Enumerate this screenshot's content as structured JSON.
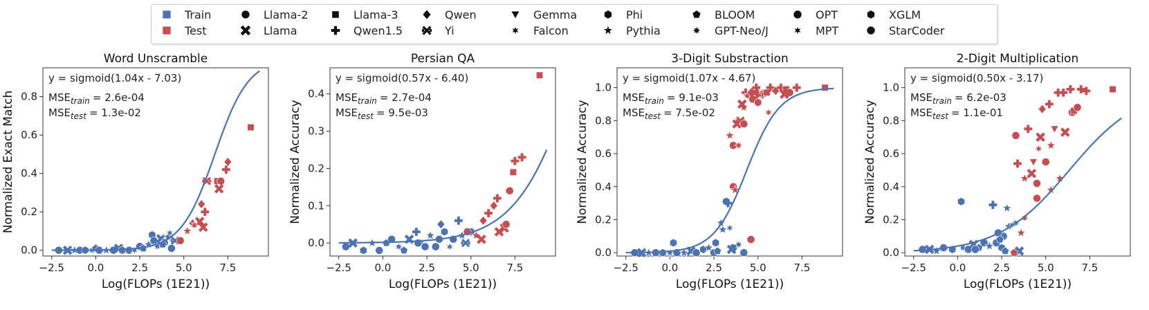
{
  "colors": {
    "train": "#4C72B0",
    "test": "#C44E52",
    "fit": "#4C72B0"
  },
  "legend": {
    "split": [
      {
        "label": "Train",
        "color": "#4C72B0",
        "icon": "square-marker"
      },
      {
        "label": "Test",
        "color": "#C44E52",
        "icon": "square-marker"
      }
    ],
    "models": [
      {
        "label": "Llama-2",
        "marker": "circle"
      },
      {
        "label": "Llama",
        "marker": "x"
      },
      {
        "label": "Llama-3",
        "marker": "square"
      },
      {
        "label": "Qwen1.5",
        "marker": "plus"
      },
      {
        "label": "Qwen",
        "marker": "diamond"
      },
      {
        "label": "Yi",
        "marker": "tri-x"
      },
      {
        "label": "Gemma",
        "marker": "triangle-down"
      },
      {
        "label": "Falcon",
        "marker": "star6"
      },
      {
        "label": "Phi",
        "marker": "hexagon"
      },
      {
        "label": "Pythia",
        "marker": "star"
      },
      {
        "label": "BLOOM",
        "marker": "pentagon"
      },
      {
        "label": "GPT-Neo/J",
        "marker": "star8"
      },
      {
        "label": "OPT",
        "marker": "circle"
      },
      {
        "label": "MPT",
        "marker": "star6"
      },
      {
        "label": "XGLM",
        "marker": "hexagon"
      },
      {
        "label": "StarCoder",
        "marker": "circle"
      }
    ]
  },
  "chart_data": [
    {
      "type": "scatter",
      "title": "Word Unscramble",
      "xlabel": "Log(FLOPs (1E21))",
      "ylabel": "Normalized Exact Match",
      "xlim": [
        -3,
        9.8
      ],
      "ylim": [
        -0.03,
        0.95
      ],
      "xticks": [
        -2.5,
        0.0,
        2.5,
        5.0,
        7.5
      ],
      "xtick_labels": [
        "−2.5",
        "0.0",
        "2.5",
        "5.0",
        "7.5"
      ],
      "yticks": [
        0.0,
        0.2,
        0.4,
        0.6,
        0.8
      ],
      "ytick_labels": [
        "0.0",
        "0.2",
        "0.4",
        "0.6",
        "0.8"
      ],
      "fit": {
        "a": 1.04,
        "b": -7.03,
        "x_range": [
          -2.5,
          9.3
        ]
      },
      "equation": "y = sigmoid(1.04x - 7.03)",
      "mse_train_value": "= 2.6e-04",
      "mse_test_value": "= 1.3e-02",
      "train": [
        [
          -2.1,
          0.0,
          "circle"
        ],
        [
          -1.6,
          0.0,
          "x"
        ],
        [
          -1.2,
          0.0,
          "star"
        ],
        [
          -0.9,
          0.0,
          "circle"
        ],
        [
          -0.6,
          0.0,
          "hexagon"
        ],
        [
          -0.2,
          0.0,
          "star8"
        ],
        [
          0.0,
          0.01,
          "pentagon"
        ],
        [
          0.2,
          0.0,
          "circle"
        ],
        [
          0.6,
          0.0,
          "star"
        ],
        [
          1.0,
          0.0,
          "circle"
        ],
        [
          1.3,
          0.01,
          "x"
        ],
        [
          1.5,
          0.0,
          "hexagon"
        ],
        [
          1.9,
          0.0,
          "circle"
        ],
        [
          2.2,
          0.0,
          "star6"
        ],
        [
          2.5,
          0.02,
          "circle"
        ],
        [
          2.7,
          0.01,
          "pentagon"
        ],
        [
          3.0,
          0.03,
          "star"
        ],
        [
          3.2,
          0.08,
          "hexagon"
        ],
        [
          3.3,
          0.05,
          "circle"
        ],
        [
          3.5,
          0.02,
          "star8"
        ],
        [
          3.7,
          0.06,
          "x"
        ],
        [
          3.9,
          0.04,
          "circle"
        ],
        [
          4.1,
          0.07,
          "star"
        ],
        [
          4.3,
          0.01,
          "circle"
        ],
        [
          4.5,
          0.05,
          "tri-x"
        ],
        [
          4.2,
          0.09,
          "star6"
        ],
        [
          3.8,
          0.03,
          "pentagon"
        ]
      ],
      "test": [
        [
          4.8,
          0.05,
          "circle"
        ],
        [
          5.2,
          0.1,
          "star"
        ],
        [
          5.5,
          0.14,
          "diamond"
        ],
        [
          5.9,
          0.15,
          "x"
        ],
        [
          6.0,
          0.24,
          "diamond"
        ],
        [
          6.2,
          0.2,
          "plus"
        ],
        [
          6.1,
          0.12,
          "x"
        ],
        [
          6.3,
          0.36,
          "tri-x"
        ],
        [
          6.9,
          0.36,
          "square"
        ],
        [
          7.1,
          0.36,
          "circle"
        ],
        [
          7.0,
          0.32,
          "x"
        ],
        [
          7.4,
          0.42,
          "plus"
        ],
        [
          7.5,
          0.46,
          "diamond"
        ],
        [
          8.8,
          0.64,
          "square"
        ],
        [
          5.6,
          0.13,
          "star8"
        ]
      ]
    },
    {
      "type": "scatter",
      "title": "Persian QA",
      "xlabel": "Log(FLOPs (1E21))",
      "ylabel": "Normalized Accuracy",
      "xlim": [
        -3,
        9.8
      ],
      "ylim": [
        -0.035,
        0.47
      ],
      "xticks": [
        -2.5,
        0.0,
        2.5,
        5.0,
        7.5
      ],
      "xtick_labels": [
        "−2.5",
        "0.0",
        "2.5",
        "5.0",
        "7.5"
      ],
      "yticks": [
        0.0,
        0.1,
        0.2,
        0.3,
        0.4
      ],
      "ytick_labels": [
        "0.0",
        "0.1",
        "0.2",
        "0.3",
        "0.4"
      ],
      "fit": {
        "a": 0.57,
        "b": -6.4,
        "x_range": [
          -2.5,
          9.3
        ]
      },
      "equation": "y = sigmoid(0.57x - 6.40)",
      "mse_train_value": "= 2.7e-04",
      "mse_test_value": "= 9.5e-03",
      "train": [
        [
          -2.1,
          -0.01,
          "circle"
        ],
        [
          -1.7,
          0.0,
          "x"
        ],
        [
          -1.1,
          -0.02,
          "hexagon"
        ],
        [
          -0.6,
          0.0,
          "star"
        ],
        [
          -0.2,
          -0.02,
          "circle"
        ],
        [
          0.2,
          0.0,
          "pentagon"
        ],
        [
          0.5,
          0.01,
          "circle"
        ],
        [
          0.9,
          -0.01,
          "star8"
        ],
        [
          1.2,
          -0.02,
          "pentagon"
        ],
        [
          1.5,
          0.01,
          "x"
        ],
        [
          1.9,
          0.03,
          "plus"
        ],
        [
          2.1,
          0.0,
          "hexagon"
        ],
        [
          2.4,
          -0.01,
          "circle"
        ],
        [
          2.7,
          0.02,
          "star"
        ],
        [
          3.0,
          -0.01,
          "circle"
        ],
        [
          3.2,
          0.01,
          "circle"
        ],
        [
          3.5,
          0.03,
          "hexagon"
        ],
        [
          3.8,
          -0.01,
          "star6"
        ],
        [
          4.0,
          0.01,
          "circle"
        ],
        [
          4.3,
          0.06,
          "plus"
        ],
        [
          4.5,
          0.02,
          "star"
        ],
        [
          4.7,
          0.0,
          "tri-x"
        ],
        [
          3.3,
          0.05,
          "diamond"
        ],
        [
          2.0,
          0.0,
          "circle"
        ],
        [
          5.0,
          0.03,
          "circle"
        ]
      ],
      "test": [
        [
          4.8,
          0.03,
          "circle"
        ],
        [
          5.3,
          0.02,
          "star"
        ],
        [
          5.6,
          0.01,
          "x"
        ],
        [
          5.7,
          0.06,
          "diamond"
        ],
        [
          6.0,
          0.08,
          "plus"
        ],
        [
          6.3,
          0.1,
          "diamond"
        ],
        [
          6.5,
          0.12,
          "plus"
        ],
        [
          6.9,
          0.04,
          "x"
        ],
        [
          7.0,
          0.05,
          "circle"
        ],
        [
          7.2,
          0.14,
          "circle"
        ],
        [
          7.4,
          0.19,
          "square"
        ],
        [
          7.5,
          0.22,
          "plus"
        ],
        [
          7.9,
          0.23,
          "plus"
        ],
        [
          8.9,
          0.45,
          "square"
        ],
        [
          6.6,
          0.03,
          "x"
        ]
      ]
    },
    {
      "type": "scatter",
      "title": "3-Digit Substraction",
      "xlabel": "Log(FLOPs (1E21))",
      "ylabel": "Normalized Accuracy",
      "xlim": [
        -3,
        9.8
      ],
      "ylim": [
        -0.02,
        1.12
      ],
      "xticks": [
        -2.5,
        0.0,
        2.5,
        5.0,
        7.5
      ],
      "xtick_labels": [
        "−2.5",
        "0.0",
        "2.5",
        "5.0",
        "7.5"
      ],
      "yticks": [
        0.0,
        0.2,
        0.4,
        0.6,
        0.8,
        1.0
      ],
      "ytick_labels": [
        "0.0",
        "0.2",
        "0.4",
        "0.6",
        "0.8",
        "1.0"
      ],
      "fit": {
        "a": 1.07,
        "b": -4.67,
        "x_range": [
          -2.5,
          9.3
        ]
      },
      "equation": "y = sigmoid(1.07x - 4.67)",
      "mse_train_value": "= 9.1e-03",
      "mse_test_value": "= 7.5e-02",
      "train": [
        [
          -2.0,
          0.0,
          "circle"
        ],
        [
          -1.6,
          0.0,
          "x"
        ],
        [
          -1.2,
          0.0,
          "star"
        ],
        [
          -0.8,
          0.0,
          "circle"
        ],
        [
          -0.4,
          0.0,
          "hexagon"
        ],
        [
          0.0,
          0.0,
          "star8"
        ],
        [
          0.2,
          0.06,
          "hexagon"
        ],
        [
          0.4,
          0.0,
          "circle"
        ],
        [
          0.8,
          0.0,
          "star"
        ],
        [
          1.2,
          0.01,
          "x"
        ],
        [
          1.5,
          0.0,
          "circle"
        ],
        [
          1.9,
          0.02,
          "hexagon"
        ],
        [
          2.2,
          0.03,
          "star"
        ],
        [
          2.5,
          0.0,
          "circle"
        ],
        [
          2.7,
          0.01,
          "pentagon"
        ],
        [
          3.0,
          0.14,
          "star"
        ],
        [
          3.2,
          0.31,
          "circle"
        ],
        [
          3.3,
          0.3,
          "plus"
        ],
        [
          3.6,
          0.03,
          "circle"
        ],
        [
          3.9,
          0.05,
          "star8"
        ],
        [
          2.9,
          0.18,
          "star"
        ],
        [
          3.4,
          0.15,
          "star6"
        ],
        [
          4.2,
          0.0,
          "circle"
        ],
        [
          3.5,
          0.02,
          "x"
        ],
        [
          2.6,
          0.06,
          "hexagon"
        ]
      ],
      "test": [
        [
          3.6,
          0.4,
          "circle"
        ],
        [
          3.7,
          0.38,
          "star"
        ],
        [
          3.6,
          0.65,
          "circle"
        ],
        [
          3.9,
          0.65,
          "star8"
        ],
        [
          3.8,
          0.78,
          "x"
        ],
        [
          4.0,
          0.8,
          "tri-x"
        ],
        [
          4.2,
          0.78,
          "circle"
        ],
        [
          4.2,
          0.88,
          "star"
        ],
        [
          4.3,
          0.97,
          "plus"
        ],
        [
          4.4,
          0.95,
          "star8"
        ],
        [
          4.6,
          0.97,
          "diamond"
        ],
        [
          4.7,
          0.93,
          "circle"
        ],
        [
          4.8,
          0.97,
          "x"
        ],
        [
          4.9,
          1.0,
          "plus"
        ],
        [
          5.1,
          0.96,
          "x"
        ],
        [
          5.3,
          0.96,
          "star"
        ],
        [
          5.5,
          0.97,
          "square"
        ],
        [
          5.7,
          1.0,
          "plus"
        ],
        [
          6.0,
          0.98,
          "diamond"
        ],
        [
          6.3,
          1.0,
          "plus"
        ],
        [
          6.6,
          0.99,
          "square"
        ],
        [
          6.8,
          0.97,
          "circle"
        ],
        [
          7.2,
          1.0,
          "plus"
        ],
        [
          8.8,
          1.0,
          "square"
        ],
        [
          4.6,
          0.08,
          "circle"
        ],
        [
          4.1,
          0.9,
          "x"
        ],
        [
          3.4,
          0.71,
          "star"
        ],
        [
          5.0,
          0.91,
          "hexagon"
        ],
        [
          5.6,
          0.85,
          "star6"
        ],
        [
          6.5,
          0.96,
          "x"
        ]
      ]
    },
    {
      "type": "scatter",
      "title": "2-Digit Multiplication",
      "xlabel": "Log(FLOPs (1E21))",
      "ylabel": "Normalized Accuracy",
      "xlim": [
        -3,
        9.8
      ],
      "ylim": [
        -0.02,
        1.12
      ],
      "xticks": [
        -2.5,
        0.0,
        2.5,
        5.0,
        7.5
      ],
      "xtick_labels": [
        "−2.5",
        "0.0",
        "2.5",
        "5.0",
        "7.5"
      ],
      "yticks": [
        0.0,
        0.2,
        0.4,
        0.6,
        0.8,
        1.0
      ],
      "ytick_labels": [
        "0.0",
        "0.2",
        "0.4",
        "0.6",
        "0.8",
        "1.0"
      ],
      "fit": {
        "a": 0.5,
        "b": -3.17,
        "x_range": [
          -2.5,
          9.3
        ]
      },
      "equation": "y = sigmoid(0.50x - 3.17)",
      "mse_train_value": "= 6.2e-03",
      "mse_test_value": "= 1.1e-01",
      "train": [
        [
          -2.0,
          0.02,
          "circle"
        ],
        [
          -1.6,
          0.02,
          "x"
        ],
        [
          -1.2,
          0.01,
          "star"
        ],
        [
          -0.8,
          0.03,
          "circle"
        ],
        [
          -0.3,
          0.02,
          "hexagon"
        ],
        [
          0.2,
          0.31,
          "hexagon"
        ],
        [
          0.3,
          0.03,
          "star8"
        ],
        [
          0.6,
          0.02,
          "circle"
        ],
        [
          0.9,
          0.05,
          "x"
        ],
        [
          1.2,
          0.03,
          "pentagon"
        ],
        [
          1.5,
          0.06,
          "circle"
        ],
        [
          1.8,
          0.04,
          "star"
        ],
        [
          2.0,
          0.29,
          "plus"
        ],
        [
          2.2,
          0.06,
          "circle"
        ],
        [
          2.5,
          0.03,
          "hexagon"
        ],
        [
          2.6,
          0.1,
          "circle"
        ],
        [
          2.7,
          0.01,
          "pentagon"
        ],
        [
          2.8,
          0.27,
          "star"
        ],
        [
          2.9,
          0.16,
          "star"
        ],
        [
          3.1,
          0.17,
          "star6"
        ],
        [
          3.3,
          0.18,
          "star8"
        ],
        [
          2.3,
          0.12,
          "circle"
        ],
        [
          1.0,
          0.02,
          "circle"
        ],
        [
          3.5,
          0.01,
          "x"
        ],
        [
          2.4,
          0.08,
          "pentagon"
        ]
      ],
      "test": [
        [
          3.2,
          0.0,
          "pentagon"
        ],
        [
          3.3,
          0.71,
          "circle"
        ],
        [
          3.4,
          0.54,
          "plus"
        ],
        [
          3.6,
          0.12,
          "star"
        ],
        [
          3.8,
          0.21,
          "star8"
        ],
        [
          3.8,
          0.45,
          "star"
        ],
        [
          4.0,
          0.75,
          "plus"
        ],
        [
          4.2,
          0.48,
          "x"
        ],
        [
          4.3,
          0.55,
          "triangle-down"
        ],
        [
          4.5,
          0.42,
          "circle"
        ],
        [
          4.5,
          0.33,
          "circle"
        ],
        [
          4.6,
          0.63,
          "star6"
        ],
        [
          4.7,
          0.7,
          "x"
        ],
        [
          4.8,
          0.87,
          "diamond"
        ],
        [
          5.0,
          0.55,
          "circle"
        ],
        [
          5.2,
          0.9,
          "plus"
        ],
        [
          5.3,
          0.65,
          "star"
        ],
        [
          5.5,
          0.75,
          "triangle-down"
        ],
        [
          5.7,
          0.97,
          "plus"
        ],
        [
          6.0,
          0.97,
          "plus"
        ],
        [
          6.1,
          0.73,
          "x"
        ],
        [
          6.4,
          0.99,
          "plus"
        ],
        [
          6.5,
          0.85,
          "circle"
        ],
        [
          6.6,
          0.86,
          "square"
        ],
        [
          6.8,
          0.88,
          "circle"
        ],
        [
          7.0,
          0.99,
          "plus"
        ],
        [
          7.3,
          0.98,
          "plus"
        ],
        [
          8.8,
          0.99,
          "square"
        ],
        [
          5.3,
          0.38,
          "star"
        ],
        [
          5.8,
          0.45,
          "star"
        ]
      ]
    }
  ]
}
